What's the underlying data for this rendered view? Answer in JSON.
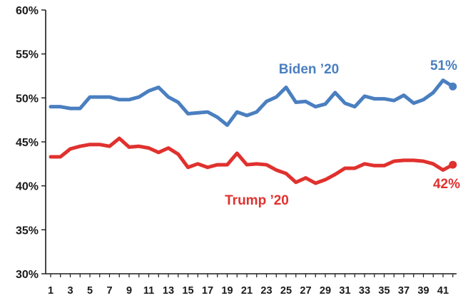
{
  "chart_data": {
    "type": "line",
    "x": [
      1,
      2,
      3,
      4,
      5,
      6,
      7,
      8,
      9,
      10,
      11,
      12,
      13,
      14,
      15,
      16,
      17,
      18,
      19,
      20,
      21,
      22,
      23,
      24,
      25,
      26,
      27,
      28,
      29,
      30,
      31,
      32,
      33,
      34,
      35,
      36,
      37,
      38,
      39,
      40,
      41,
      42
    ],
    "x_tick_labels": [
      "1",
      "3",
      "5",
      "7",
      "9",
      "11",
      "13",
      "15",
      "17",
      "19",
      "21",
      "23",
      "25",
      "27",
      "29",
      "31",
      "33",
      "35",
      "37",
      "39",
      "41"
    ],
    "y_tick_labels": [
      "60%",
      "55%",
      "50%",
      "45%",
      "40%",
      "35%",
      "30%"
    ],
    "ylim": [
      30,
      60
    ],
    "grid": false,
    "series": [
      {
        "name": "Biden ’20",
        "color": "#4a7fc0",
        "end_label": "51%",
        "values": [
          49.0,
          49.0,
          48.8,
          48.8,
          50.1,
          50.1,
          50.1,
          49.8,
          49.8,
          50.1,
          50.8,
          51.2,
          50.1,
          49.5,
          48.2,
          48.3,
          48.4,
          47.8,
          46.9,
          48.4,
          48.0,
          48.4,
          49.6,
          50.1,
          51.2,
          49.5,
          49.6,
          49.0,
          49.3,
          50.6,
          49.4,
          49.0,
          50.2,
          49.9,
          49.9,
          49.7,
          50.3,
          49.4,
          49.8,
          50.6,
          52.0,
          51.3
        ]
      },
      {
        "name": "Trump ’20",
        "color": "#e0312e",
        "end_label": "42%",
        "values": [
          43.3,
          43.3,
          44.2,
          44.5,
          44.7,
          44.7,
          44.5,
          45.4,
          44.4,
          44.5,
          44.3,
          43.8,
          44.3,
          43.6,
          42.1,
          42.5,
          42.1,
          42.4,
          42.4,
          43.7,
          42.4,
          42.5,
          42.4,
          41.8,
          41.4,
          40.4,
          40.9,
          40.3,
          40.7,
          41.3,
          42.0,
          42.0,
          42.5,
          42.3,
          42.3,
          42.8,
          42.9,
          42.9,
          42.8,
          42.5,
          41.8,
          42.4
        ]
      }
    ]
  }
}
